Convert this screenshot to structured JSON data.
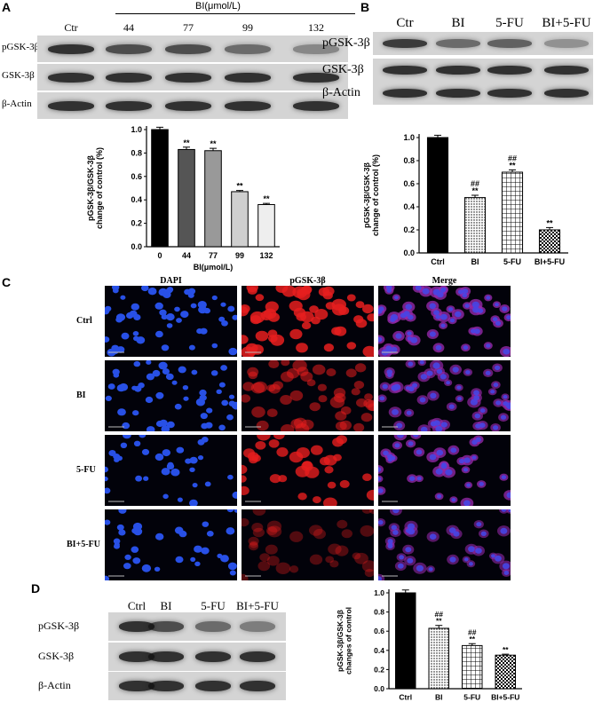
{
  "panel_a": {
    "label": "A",
    "header": "BI(μmol/L)",
    "lanes": [
      "Ctr",
      "44",
      "77",
      "99",
      "132"
    ],
    "rows": [
      "pGSK-3β",
      "GSK-3β",
      "β-Actin"
    ],
    "pgsk_intensity": [
      0.85,
      0.7,
      0.7,
      0.55,
      0.4
    ]
  },
  "panel_b": {
    "label": "B",
    "lanes": [
      "Ctr",
      "BI",
      "5-FU",
      "BI+5-FU"
    ],
    "rows": [
      "pGSK-3β",
      "GSK-3β",
      "β-Actin"
    ],
    "pgsk_intensity": [
      0.8,
      0.55,
      0.6,
      0.35
    ]
  },
  "panel_c": {
    "label": "C",
    "columns": [
      "DAPI",
      "pGSK-3β",
      "Merge"
    ],
    "rows": [
      "Ctrl",
      "BI",
      "5-FU",
      "BI+5-FU"
    ]
  },
  "panel_d": {
    "label": "D",
    "lanes": [
      "Ctrl",
      "BI",
      "5-FU",
      "BI+5-FU"
    ],
    "rows": [
      "pGSK-3β",
      "GSK-3β",
      "β-Actin"
    ],
    "pgsk_intensity": [
      0.85,
      0.7,
      0.55,
      0.45
    ]
  },
  "chart_data": [
    {
      "id": "A",
      "type": "bar",
      "categories": [
        "0",
        "44",
        "77",
        "99",
        "132"
      ],
      "values": [
        1.0,
        0.83,
        0.82,
        0.47,
        0.36
      ],
      "errors": [
        0.02,
        0.02,
        0.02,
        0.01,
        0.01
      ],
      "annotations": [
        "",
        "**",
        "**",
        "**",
        "**"
      ],
      "fills": [
        "#000000",
        "#555555",
        "#999999",
        "#cfcfcf",
        "#eeeeee"
      ],
      "xlabel": "BI(μmol/L)",
      "ylabel_line1": "pGSK-3β/GSK-3β",
      "ylabel_line2": "change of control (%)",
      "ylim": [
        0,
        1.0
      ],
      "yticks": [
        "0.0",
        "0.2",
        "0.4",
        "0.6",
        "0.8",
        "1.0"
      ]
    },
    {
      "id": "B",
      "type": "bar",
      "categories": [
        "Ctrl",
        "BI",
        "5-FU",
        "BI+5-FU"
      ],
      "values": [
        1.0,
        0.48,
        0.7,
        0.2
      ],
      "errors": [
        0.02,
        0.02,
        0.02,
        0.02
      ],
      "annotations_top": [
        "",
        "##",
        "##",
        ""
      ],
      "annotations": [
        "",
        "**",
        "**",
        "**"
      ],
      "fills": [
        "black",
        "dots",
        "grid",
        "check"
      ],
      "xlabel": "",
      "ylabel_line1": "pGSK-3β/GSK-3β",
      "ylabel_line2": "change of control (%)",
      "ylim": [
        0,
        1.0
      ],
      "yticks": [
        "0.0",
        "0.2",
        "0.4",
        "0.6",
        "0.8",
        "1.0"
      ]
    },
    {
      "id": "D",
      "type": "bar",
      "categories": [
        "Ctrl",
        "BI",
        "5-FU",
        "BI+5-FU"
      ],
      "values": [
        1.0,
        0.63,
        0.45,
        0.35
      ],
      "errors": [
        0.03,
        0.03,
        0.02,
        0.01
      ],
      "annotations_top": [
        "",
        "##",
        "##",
        ""
      ],
      "annotations": [
        "",
        "**",
        "**",
        "**"
      ],
      "fills": [
        "black",
        "dots",
        "grid",
        "check"
      ],
      "xlabel": "",
      "ylabel_line1": "pGSK-3β/GSK-3β",
      "ylabel_line2": "changes of control",
      "ylim": [
        0.0,
        1.0
      ],
      "yticks": [
        "0.0",
        "0.2",
        "0.4",
        "0.6",
        "0.8",
        "1.0"
      ]
    }
  ]
}
